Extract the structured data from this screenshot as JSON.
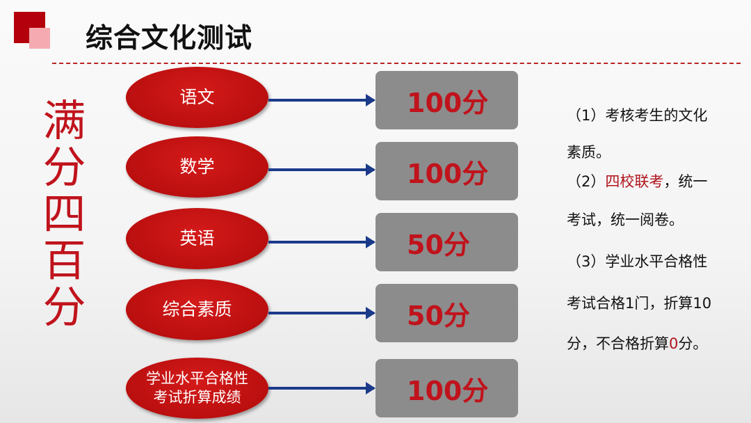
{
  "title": "综合文化测试",
  "vertical_text": "满分四百分",
  "subjects": [
    {
      "name": "语文",
      "score": "100分"
    },
    {
      "name": "数学",
      "score": "100分"
    },
    {
      "name": "英语",
      "score": "50分"
    },
    {
      "name": "综合素质",
      "score": "50分"
    },
    {
      "name_line1": "学业水平合格性",
      "name_line2": "考试折算成绩",
      "score": "100分"
    }
  ],
  "notes": {
    "l1": "（1）考核考生的文化",
    "l2": "素质。",
    "l3a": "（2）",
    "l3b": "四校联考",
    "l3c": "，统一",
    "l4": "考试，统一阅卷。",
    "l5": "（3）学业水平合格性",
    "l6": "考试合格1门，折算10",
    "l7a": "分，不合格折算",
    "l7b": "0",
    "l7c": "分。"
  },
  "colors": {
    "accent": "#c0131c",
    "arrow": "#1b3a8a",
    "box": "#8c8c8c"
  }
}
